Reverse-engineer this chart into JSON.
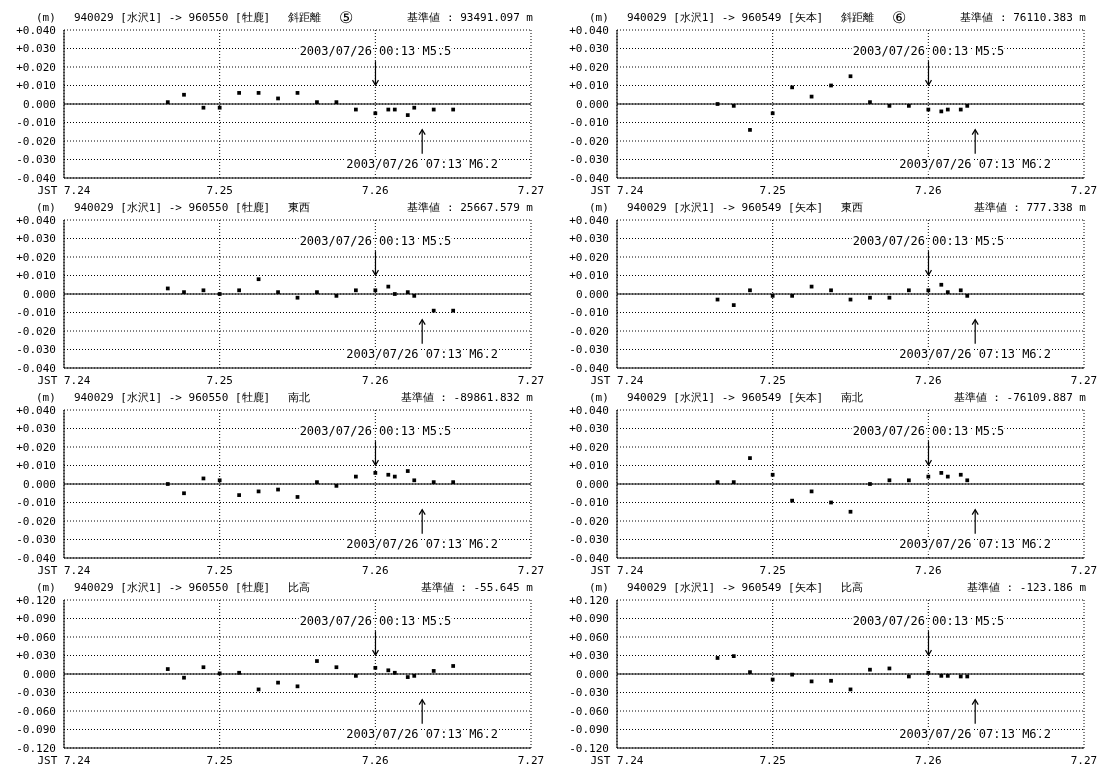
{
  "chart_data": [
    {
      "type": "scatter",
      "title": "940029 [水沢1] -> 960550 [牡鹿]",
      "subtitle": "斜距離",
      "ylabel": "(m)",
      "annotations": [
        "⑤",
        "基準値 : 93491.097 m",
        "2003/07/26 00:13 M5.5",
        "2003/07/26 07:13 M6.2"
      ],
      "x": [
        "--07-24T16:00",
        "--07-24T18:30",
        "--07-24T21:30",
        "--07-25T00:00",
        "--07-25T03:00",
        "--07-25T06:00",
        "--07-25T09:00",
        "--07-25T12:00",
        "--07-25T15:00",
        "--07-25T18:00",
        "--07-25T21:00",
        "--07-26T00:00",
        "--07-26T02:00",
        "--07-26T03:00",
        "--07-26T05:00",
        "--07-26T06:00",
        "--07-26T09:00",
        "--07-26T12:00"
      ],
      "values": [
        0.001,
        0.005,
        -0.002,
        -0.002,
        0.006,
        0.006,
        0.003,
        0.006,
        0.001,
        0.001,
        -0.003,
        -0.005,
        -0.003,
        -0.003,
        -0.006,
        -0.002,
        -0.003,
        -0.003
      ],
      "color": "#000000",
      "marker": "square",
      "xlim": [
        "--07-24",
        "--07-27"
      ],
      "xticks": [
        {
          "value": "--07-24",
          "label": "JST 7.24"
        },
        {
          "value": "--07-25",
          "label": "7.25"
        },
        {
          "value": "--07-26",
          "label": "7.26"
        },
        {
          "value": "--07-27",
          "label": "7.27"
        }
      ],
      "ylim": [
        -0.04,
        0.04
      ],
      "yticks": [
        {
          "value": -0.04,
          "label": "-0.040"
        },
        {
          "value": -0.03,
          "label": "-0.030"
        },
        {
          "value": -0.02,
          "label": "-0.020"
        },
        {
          "value": -0.01,
          "label": "-0.010"
        },
        {
          "value": 0,
          "label": "0.000"
        },
        {
          "value": 0.01,
          "label": "+0.010"
        },
        {
          "value": 0.02,
          "label": "+0.020"
        },
        {
          "value": 0.03,
          "label": "+0.030"
        },
        {
          "value": 0.04,
          "label": "+0.040"
        }
      ],
      "grid": true,
      "ref_lines": [
        {
          "axis": "y",
          "value": 0
        }
      ]
    },
    {
      "type": "scatter",
      "title": "940029 [水沢1] -> 960549 [矢本]",
      "subtitle": "斜距離",
      "ylabel": "(m)",
      "annotations": [
        "⑥",
        "基準値 : 76110.383 m",
        "2003/07/26 00:13 M5.5",
        "2003/07/26 07:13 M6.2"
      ],
      "x": [
        "--07-24T15:30",
        "--07-24T18:00",
        "--07-24T20:30",
        "--07-25T00:00",
        "--07-25T03:00",
        "--07-25T06:00",
        "--07-25T09:00",
        "--07-25T12:00",
        "--07-25T15:00",
        "--07-25T18:00",
        "--07-25T21:00",
        "--07-26T00:00",
        "--07-26T02:00",
        "--07-26T03:00",
        "--07-26T05:00",
        "--07-26T06:00"
      ],
      "values": [
        0.0,
        -0.001,
        -0.014,
        -0.005,
        0.009,
        0.004,
        0.01,
        0.015,
        0.001,
        -0.001,
        -0.001,
        -0.003,
        -0.004,
        -0.003,
        -0.003,
        -0.001
      ],
      "color": "#000000",
      "marker": "square",
      "xlim": [
        "--07-24",
        "--07-27"
      ],
      "xticks": [
        {
          "value": "--07-24",
          "label": "JST 7.24"
        },
        {
          "value": "--07-25",
          "label": "7.25"
        },
        {
          "value": "--07-26",
          "label": "7.26"
        },
        {
          "value": "--07-27",
          "label": "7.27"
        }
      ],
      "ylim": [
        -0.04,
        0.04
      ],
      "yticks": [
        {
          "value": -0.04,
          "label": "-0.040"
        },
        {
          "value": -0.03,
          "label": "-0.030"
        },
        {
          "value": -0.02,
          "label": "-0.020"
        },
        {
          "value": -0.01,
          "label": "-0.010"
        },
        {
          "value": 0,
          "label": "0.000"
        },
        {
          "value": 0.01,
          "label": "+0.010"
        },
        {
          "value": 0.02,
          "label": "+0.020"
        },
        {
          "value": 0.03,
          "label": "+0.030"
        },
        {
          "value": 0.04,
          "label": "+0.040"
        }
      ],
      "grid": true,
      "ref_lines": [
        {
          "axis": "y",
          "value": 0
        }
      ]
    },
    {
      "type": "scatter",
      "title": "940029 [水沢1] -> 960550 [牡鹿]",
      "subtitle": "東西",
      "ylabel": "(m)",
      "annotations": [
        "基準値 : 25667.579 m",
        "2003/07/26 00:13 M5.5",
        "2003/07/26 07:13 M6.2"
      ],
      "x": [
        "--07-24T16:00",
        "--07-24T18:30",
        "--07-24T21:30",
        "--07-25T00:00",
        "--07-25T03:00",
        "--07-25T06:00",
        "--07-25T09:00",
        "--07-25T12:00",
        "--07-25T15:00",
        "--07-25T18:00",
        "--07-25T21:00",
        "--07-26T00:00",
        "--07-26T02:00",
        "--07-26T03:00",
        "--07-26T05:00",
        "--07-26T06:00",
        "--07-26T09:00",
        "--07-26T12:00"
      ],
      "values": [
        0.003,
        0.001,
        0.002,
        0.0,
        0.002,
        0.008,
        0.001,
        -0.002,
        0.001,
        -0.001,
        0.002,
        0.002,
        0.004,
        0.0,
        0.001,
        -0.001,
        -0.009,
        -0.009
      ],
      "color": "#000000",
      "marker": "square",
      "xlim": [
        "--07-24",
        "--07-27"
      ],
      "xticks": [
        {
          "value": "--07-24",
          "label": "JST 7.24"
        },
        {
          "value": "--07-25",
          "label": "7.25"
        },
        {
          "value": "--07-26",
          "label": "7.26"
        },
        {
          "value": "--07-27",
          "label": "7.27"
        }
      ],
      "ylim": [
        -0.04,
        0.04
      ],
      "yticks": [
        {
          "value": -0.04,
          "label": "-0.040"
        },
        {
          "value": -0.03,
          "label": "-0.030"
        },
        {
          "value": -0.02,
          "label": "-0.020"
        },
        {
          "value": -0.01,
          "label": "-0.010"
        },
        {
          "value": 0,
          "label": "0.000"
        },
        {
          "value": 0.01,
          "label": "+0.010"
        },
        {
          "value": 0.02,
          "label": "+0.020"
        },
        {
          "value": 0.03,
          "label": "+0.030"
        },
        {
          "value": 0.04,
          "label": "+0.040"
        }
      ],
      "grid": true,
      "ref_lines": [
        {
          "axis": "y",
          "value": 0
        }
      ]
    },
    {
      "type": "scatter",
      "title": "940029 [水沢1] -> 960549 [矢本]",
      "subtitle": "東西",
      "ylabel": "(m)",
      "annotations": [
        "基準値 : 777.338 m",
        "2003/07/26 00:13 M5.5",
        "2003/07/26 07:13 M6.2"
      ],
      "x": [
        "--07-24T15:30",
        "--07-24T18:00",
        "--07-24T20:30",
        "--07-25T00:00",
        "--07-25T03:00",
        "--07-25T06:00",
        "--07-25T09:00",
        "--07-25T12:00",
        "--07-25T15:00",
        "--07-25T18:00",
        "--07-25T21:00",
        "--07-26T00:00",
        "--07-26T02:00",
        "--07-26T03:00",
        "--07-26T05:00",
        "--07-26T06:00"
      ],
      "values": [
        -0.003,
        -0.006,
        0.002,
        -0.001,
        -0.001,
        0.004,
        0.002,
        -0.003,
        -0.002,
        -0.002,
        0.002,
        0.002,
        0.005,
        0.001,
        0.002,
        -0.001
      ],
      "color": "#000000",
      "marker": "square",
      "xlim": [
        "--07-24",
        "--07-27"
      ],
      "xticks": [
        {
          "value": "--07-24",
          "label": "JST 7.24"
        },
        {
          "value": "--07-25",
          "label": "7.25"
        },
        {
          "value": "--07-26",
          "label": "7.26"
        },
        {
          "value": "--07-27",
          "label": "7.27"
        }
      ],
      "ylim": [
        -0.04,
        0.04
      ],
      "yticks": [
        {
          "value": -0.04,
          "label": "-0.040"
        },
        {
          "value": -0.03,
          "label": "-0.030"
        },
        {
          "value": -0.02,
          "label": "-0.020"
        },
        {
          "value": -0.01,
          "label": "-0.010"
        },
        {
          "value": 0,
          "label": "0.000"
        },
        {
          "value": 0.01,
          "label": "+0.010"
        },
        {
          "value": 0.02,
          "label": "+0.020"
        },
        {
          "value": 0.03,
          "label": "+0.030"
        },
        {
          "value": 0.04,
          "label": "+0.040"
        }
      ],
      "grid": true,
      "ref_lines": [
        {
          "axis": "y",
          "value": 0
        }
      ]
    },
    {
      "type": "scatter",
      "title": "940029 [水沢1] -> 960550 [牡鹿]",
      "subtitle": "南北",
      "ylabel": "(m)",
      "annotations": [
        "基準値 : -89861.832 m",
        "2003/07/26 00:13 M5.5",
        "2003/07/26 07:13 M6.2"
      ],
      "x": [
        "--07-24T16:00",
        "--07-24T18:30",
        "--07-24T21:30",
        "--07-25T00:00",
        "--07-25T03:00",
        "--07-25T06:00",
        "--07-25T09:00",
        "--07-25T12:00",
        "--07-25T15:00",
        "--07-25T18:00",
        "--07-25T21:00",
        "--07-26T00:00",
        "--07-26T02:00",
        "--07-26T03:00",
        "--07-26T05:00",
        "--07-26T06:00",
        "--07-26T09:00",
        "--07-26T12:00"
      ],
      "values": [
        0.0,
        -0.005,
        0.003,
        0.002,
        -0.006,
        -0.004,
        -0.003,
        -0.007,
        0.001,
        -0.001,
        0.004,
        0.006,
        0.005,
        0.004,
        0.007,
        0.002,
        0.001,
        0.001
      ],
      "color": "#000000",
      "marker": "square",
      "xlim": [
        "--07-24",
        "--07-27"
      ],
      "xticks": [
        {
          "value": "--07-24",
          "label": "JST 7.24"
        },
        {
          "value": "--07-25",
          "label": "7.25"
        },
        {
          "value": "--07-26",
          "label": "7.26"
        },
        {
          "value": "--07-27",
          "label": "7.27"
        }
      ],
      "ylim": [
        -0.04,
        0.04
      ],
      "yticks": [
        {
          "value": -0.04,
          "label": "-0.040"
        },
        {
          "value": -0.03,
          "label": "-0.030"
        },
        {
          "value": -0.02,
          "label": "-0.020"
        },
        {
          "value": -0.01,
          "label": "-0.010"
        },
        {
          "value": 0,
          "label": "0.000"
        },
        {
          "value": 0.01,
          "label": "+0.010"
        },
        {
          "value": 0.02,
          "label": "+0.020"
        },
        {
          "value": 0.03,
          "label": "+0.030"
        },
        {
          "value": 0.04,
          "label": "+0.040"
        }
      ],
      "grid": true,
      "ref_lines": [
        {
          "axis": "y",
          "value": 0
        }
      ]
    },
    {
      "type": "scatter",
      "title": "940029 [水沢1] -> 960549 [矢本]",
      "subtitle": "南北",
      "ylabel": "(m)",
      "annotations": [
        "基準値 : -76109.887 m",
        "2003/07/26 00:13 M5.5",
        "2003/07/26 07:13 M6.2"
      ],
      "x": [
        "--07-24T15:30",
        "--07-24T18:00",
        "--07-24T20:30",
        "--07-25T00:00",
        "--07-25T03:00",
        "--07-25T06:00",
        "--07-25T09:00",
        "--07-25T12:00",
        "--07-25T15:00",
        "--07-25T18:00",
        "--07-25T21:00",
        "--07-26T00:00",
        "--07-26T02:00",
        "--07-26T03:00",
        "--07-26T05:00",
        "--07-26T06:00"
      ],
      "values": [
        0.001,
        0.001,
        0.014,
        0.005,
        -0.009,
        -0.004,
        -0.01,
        -0.015,
        0.0,
        0.002,
        0.002,
        0.004,
        0.006,
        0.004,
        0.005,
        0.002
      ],
      "color": "#000000",
      "marker": "square",
      "xlim": [
        "--07-24",
        "--07-27"
      ],
      "xticks": [
        {
          "value": "--07-24",
          "label": "JST 7.24"
        },
        {
          "value": "--07-25",
          "label": "7.25"
        },
        {
          "value": "--07-26",
          "label": "7.26"
        },
        {
          "value": "--07-27",
          "label": "7.27"
        }
      ],
      "ylim": [
        -0.04,
        0.04
      ],
      "yticks": [
        {
          "value": -0.04,
          "label": "-0.040"
        },
        {
          "value": -0.03,
          "label": "-0.030"
        },
        {
          "value": -0.02,
          "label": "-0.020"
        },
        {
          "value": -0.01,
          "label": "-0.010"
        },
        {
          "value": 0,
          "label": "0.000"
        },
        {
          "value": 0.01,
          "label": "+0.010"
        },
        {
          "value": 0.02,
          "label": "+0.020"
        },
        {
          "value": 0.03,
          "label": "+0.030"
        },
        {
          "value": 0.04,
          "label": "+0.040"
        }
      ],
      "grid": true,
      "ref_lines": [
        {
          "axis": "y",
          "value": 0
        }
      ]
    },
    {
      "type": "scatter",
      "title": "940029 [水沢1] -> 960550 [牡鹿]",
      "subtitle": "比高",
      "ylabel": "(m)",
      "annotations": [
        "基準値 : -55.645 m",
        "2003/07/26 00:13 M5.5",
        "2003/07/26 07:13 M6.2"
      ],
      "x": [
        "--07-24T16:00",
        "--07-24T18:30",
        "--07-24T21:30",
        "--07-25T00:00",
        "--07-25T03:00",
        "--07-25T06:00",
        "--07-25T09:00",
        "--07-25T12:00",
        "--07-25T15:00",
        "--07-25T18:00",
        "--07-25T21:00",
        "--07-26T00:00",
        "--07-26T02:00",
        "--07-26T03:00",
        "--07-26T05:00",
        "--07-26T06:00",
        "--07-26T09:00",
        "--07-26T12:00"
      ],
      "values": [
        0.008,
        -0.006,
        0.011,
        0.001,
        0.002,
        -0.025,
        -0.014,
        -0.02,
        0.021,
        0.011,
        -0.003,
        0.01,
        0.006,
        0.002,
        -0.005,
        -0.003,
        0.005,
        0.013
      ],
      "color": "#000000",
      "marker": "square",
      "xlim": [
        "--07-24",
        "--07-27"
      ],
      "xticks": [
        {
          "value": "--07-24",
          "label": "JST 7.24"
        },
        {
          "value": "--07-25",
          "label": "7.25"
        },
        {
          "value": "--07-26",
          "label": "7.26"
        },
        {
          "value": "--07-27",
          "label": "7.27"
        }
      ],
      "ylim": [
        -0.12,
        0.12
      ],
      "yticks": [
        {
          "value": -0.12,
          "label": "-0.120"
        },
        {
          "value": -0.09,
          "label": "-0.090"
        },
        {
          "value": -0.06,
          "label": "-0.060"
        },
        {
          "value": -0.03,
          "label": "-0.030"
        },
        {
          "value": 0,
          "label": "0.000"
        },
        {
          "value": 0.03,
          "label": "+0.030"
        },
        {
          "value": 0.06,
          "label": "+0.060"
        },
        {
          "value": 0.09,
          "label": "+0.090"
        },
        {
          "value": 0.12,
          "label": "+0.120"
        }
      ],
      "grid": true,
      "ref_lines": [
        {
          "axis": "y",
          "value": 0
        }
      ]
    },
    {
      "type": "scatter",
      "title": "940029 [水沢1] -> 960549 [矢本]",
      "subtitle": "比高",
      "ylabel": "(m)",
      "annotations": [
        "基準値 : -123.186 m",
        "2003/07/26 00:13 M5.5",
        "2003/07/26 07:13 M6.2"
      ],
      "x": [
        "--07-24T15:30",
        "--07-24T18:00",
        "--07-24T20:30",
        "--07-25T00:00",
        "--07-25T03:00",
        "--07-25T06:00",
        "--07-25T09:00",
        "--07-25T12:00",
        "--07-25T15:00",
        "--07-25T18:00",
        "--07-25T21:00",
        "--07-26T00:00",
        "--07-26T02:00",
        "--07-26T03:00",
        "--07-26T05:00",
        "--07-26T06:00"
      ],
      "values": [
        0.026,
        0.029,
        0.003,
        -0.009,
        -0.001,
        -0.012,
        -0.011,
        -0.025,
        0.007,
        0.009,
        -0.004,
        0.002,
        -0.003,
        -0.003,
        -0.004,
        -0.004
      ],
      "color": "#000000",
      "marker": "square",
      "xlim": [
        "--07-24",
        "--07-27"
      ],
      "xticks": [
        {
          "value": "--07-24",
          "label": "JST 7.24"
        },
        {
          "value": "--07-25",
          "label": "7.25"
        },
        {
          "value": "--07-26",
          "label": "7.26"
        },
        {
          "value": "--07-27",
          "label": "7.27"
        }
      ],
      "ylim": [
        -0.12,
        0.12
      ],
      "yticks": [
        {
          "value": -0.12,
          "label": "-0.120"
        },
        {
          "value": -0.09,
          "label": "-0.090"
        },
        {
          "value": -0.06,
          "label": "-0.060"
        },
        {
          "value": -0.03,
          "label": "-0.030"
        },
        {
          "value": 0,
          "label": "0.000"
        },
        {
          "value": 0.03,
          "label": "+0.030"
        },
        {
          "value": 0.06,
          "label": "+0.060"
        },
        {
          "value": 0.09,
          "label": "+0.090"
        },
        {
          "value": 0.12,
          "label": "+0.120"
        }
      ],
      "grid": true,
      "ref_lines": [
        {
          "axis": "y",
          "value": 0
        }
      ]
    }
  ]
}
